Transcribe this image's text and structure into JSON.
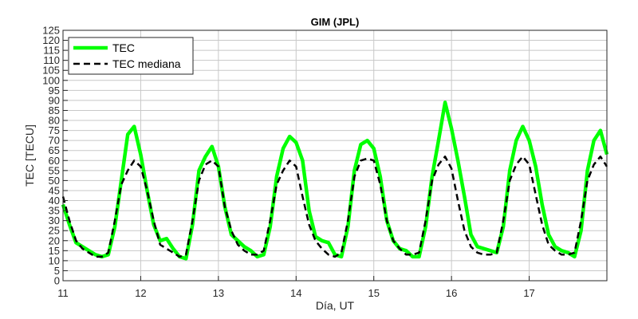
{
  "chart_data": {
    "type": "line",
    "title": "GIM (JPL)",
    "xlabel": "Día, UT",
    "ylabel": "TEC [TECU]",
    "xlim": [
      11,
      18
    ],
    "ylim": [
      0,
      125
    ],
    "xticks": [
      11,
      12,
      13,
      14,
      15,
      16,
      17
    ],
    "yticks": [
      0,
      5,
      10,
      15,
      20,
      25,
      30,
      35,
      40,
      45,
      50,
      55,
      60,
      65,
      70,
      75,
      80,
      85,
      90,
      95,
      100,
      105,
      110,
      115,
      120,
      125
    ],
    "grid": true,
    "legend": "top-left",
    "series": [
      {
        "name": "TEC",
        "color": "#00ff00",
        "style": "solid",
        "x": [
          11.0,
          11.083,
          11.167,
          11.25,
          11.333,
          11.417,
          11.5,
          11.583,
          11.667,
          11.75,
          11.833,
          11.917,
          12.0,
          12.083,
          12.167,
          12.25,
          12.333,
          12.417,
          12.5,
          12.583,
          12.667,
          12.75,
          12.833,
          12.917,
          13.0,
          13.083,
          13.167,
          13.25,
          13.333,
          13.417,
          13.5,
          13.583,
          13.667,
          13.75,
          13.833,
          13.917,
          14.0,
          14.083,
          14.167,
          14.25,
          14.333,
          14.417,
          14.5,
          14.583,
          14.667,
          14.75,
          14.833,
          14.917,
          15.0,
          15.083,
          15.167,
          15.25,
          15.333,
          15.417,
          15.5,
          15.583,
          15.667,
          15.75,
          15.833,
          15.917,
          16.0,
          16.083,
          16.167,
          16.25,
          16.333,
          16.417,
          16.5,
          16.583,
          16.667,
          16.75,
          16.833,
          16.917,
          17.0,
          17.083,
          17.167,
          17.25,
          17.333,
          17.417,
          17.5,
          17.583,
          17.667,
          17.75,
          17.833,
          17.917,
          18.0
        ],
        "y": [
          38,
          28,
          19,
          17,
          15,
          13,
          12,
          13,
          27,
          50,
          73,
          77,
          63,
          45,
          28,
          20,
          21,
          16,
          12,
          11,
          28,
          55,
          62,
          67,
          57,
          37,
          23,
          20,
          17,
          15,
          12,
          13,
          27,
          52,
          66,
          72,
          69,
          60,
          35,
          22,
          20,
          19,
          13,
          12,
          27,
          55,
          68,
          70,
          66,
          52,
          30,
          20,
          16,
          15,
          12,
          12,
          27,
          52,
          70,
          89,
          76,
          60,
          42,
          23,
          17,
          16,
          15,
          14,
          27,
          55,
          70,
          77,
          70,
          57,
          38,
          23,
          17,
          15,
          14,
          12,
          25,
          55,
          70,
          75,
          63
        ]
      },
      {
        "name": "TEC mediana",
        "color": "#000000",
        "style": "dashed",
        "x": [
          11.0,
          11.083,
          11.167,
          11.25,
          11.333,
          11.417,
          11.5,
          11.583,
          11.667,
          11.75,
          11.833,
          11.917,
          12.0,
          12.083,
          12.167,
          12.25,
          12.333,
          12.417,
          12.5,
          12.583,
          12.667,
          12.75,
          12.833,
          12.917,
          13.0,
          13.083,
          13.167,
          13.25,
          13.333,
          13.417,
          13.5,
          13.583,
          13.667,
          13.75,
          13.833,
          13.917,
          14.0,
          14.083,
          14.167,
          14.25,
          14.333,
          14.417,
          14.5,
          14.583,
          14.667,
          14.75,
          14.833,
          14.917,
          15.0,
          15.083,
          15.167,
          15.25,
          15.333,
          15.417,
          15.5,
          15.583,
          15.667,
          15.75,
          15.833,
          15.917,
          16.0,
          16.083,
          16.167,
          16.25,
          16.333,
          16.417,
          16.5,
          16.583,
          16.667,
          16.75,
          16.833,
          16.917,
          17.0,
          17.083,
          17.167,
          17.25,
          17.333,
          17.417,
          17.5,
          17.583,
          17.667,
          17.75,
          17.833,
          17.917,
          18.0
        ],
        "y": [
          42,
          30,
          20,
          16,
          14,
          12,
          12,
          14,
          30,
          48,
          55,
          60,
          57,
          45,
          30,
          18,
          16,
          14,
          12,
          13,
          30,
          50,
          58,
          60,
          57,
          37,
          25,
          18,
          15,
          13,
          13,
          15,
          30,
          48,
          55,
          60,
          57,
          42,
          28,
          20,
          16,
          13,
          12,
          14,
          30,
          52,
          60,
          61,
          60,
          48,
          30,
          20,
          16,
          13,
          13,
          14,
          30,
          50,
          58,
          62,
          56,
          40,
          25,
          17,
          14,
          13,
          13,
          14,
          30,
          50,
          58,
          62,
          58,
          43,
          28,
          18,
          15,
          13,
          13,
          14,
          30,
          50,
          58,
          62,
          57
        ]
      }
    ]
  }
}
